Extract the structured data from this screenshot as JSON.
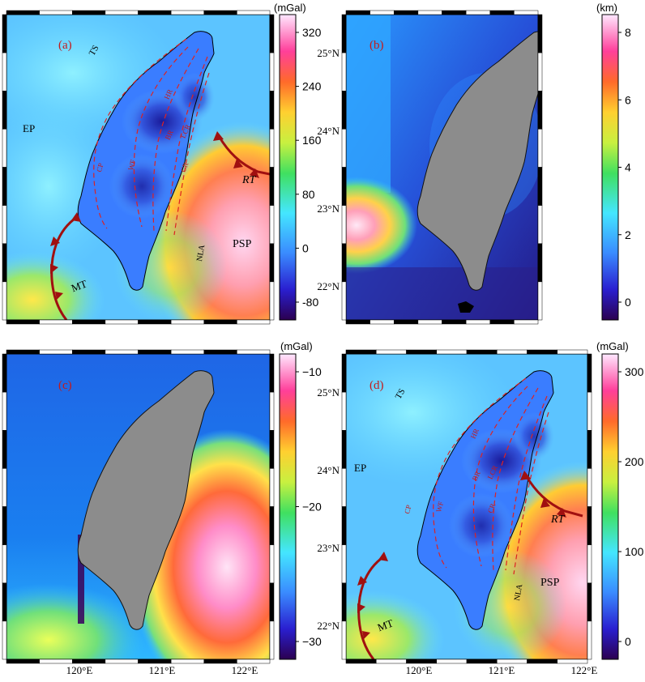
{
  "colors": {
    "island_gray": "#8c8c8c",
    "fault_red": "#dd2222",
    "trench_red": "#a01010",
    "label_red": "#c41a1a",
    "frame_black": "#000000"
  },
  "axes": {
    "lat_labels": [
      "25°N",
      "24°N",
      "23°N",
      "22°N"
    ],
    "lon_labels": [
      "120°E",
      "121°E",
      "122°E"
    ]
  },
  "panels": [
    {
      "id": "a",
      "letter": "(a)",
      "cbar_unit": "(mGal)",
      "cbar_ticks": [
        "320",
        "240",
        "160",
        "80",
        "0",
        "-80"
      ],
      "labels": {
        "ts": "TS",
        "ep": "EP",
        "psp": "PSP",
        "mt": "MT",
        "rt": "RT",
        "nla": "NLA"
      },
      "faults": {
        "cp": "CP",
        "wf": "WF",
        "hr": "HR",
        "br": "BR",
        "lcr": "LCR",
        "cr": "CR"
      }
    },
    {
      "id": "b",
      "letter": "(b)",
      "cbar_unit": "(km)",
      "cbar_ticks": [
        "8",
        "6",
        "4",
        "2",
        "0"
      ]
    },
    {
      "id": "c",
      "letter": "(c)",
      "cbar_unit": "(mGal)",
      "cbar_ticks": [
        "−10",
        "−20",
        "−30"
      ]
    },
    {
      "id": "d",
      "letter": "(d)",
      "cbar_unit": "(mGal)",
      "cbar_ticks": [
        "300",
        "200",
        "100",
        "0"
      ],
      "labels": {
        "ts": "TS",
        "ep": "EP",
        "psp": "PSP",
        "mt": "MT",
        "rt": "RT",
        "nla": "NLA"
      },
      "faults": {
        "cp": "CP",
        "wf": "WF",
        "hr": "HR",
        "br": "BR",
        "lcr": "LCR",
        "cr": "CR"
      }
    }
  ]
}
